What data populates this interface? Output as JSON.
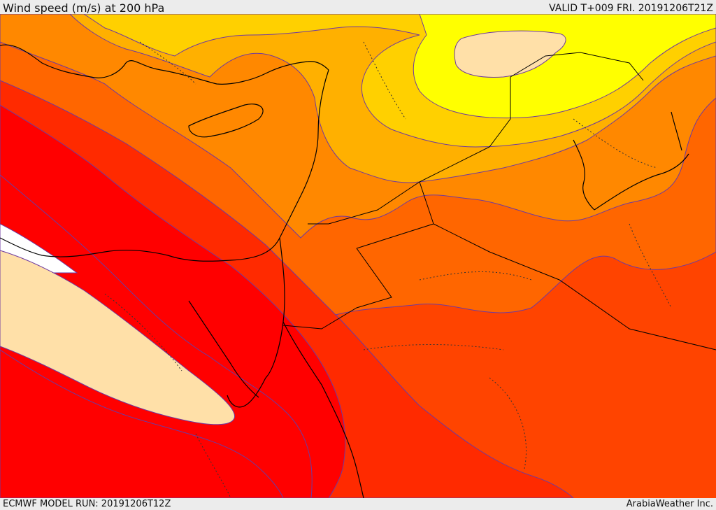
{
  "title": "Wind speed (m/s) at 200 hPa",
  "valid_label": "VALID T+009 FRI. 20191206T21Z",
  "model_run_label": "ECMWF MODEL RUN: 20191206T12Z",
  "credit_label": "ArabiaWeather Inc.",
  "colors": {
    "band_lightest": "#ffe0a8",
    "band_yellow": "#ffff00",
    "band_yellow_orange": "#ffd000",
    "band_amber": "#ffb000",
    "band_orange": "#ff8800",
    "band_dark_orange": "#ff6600",
    "band_red_orange": "#ff4400",
    "band_orange_red": "#ff2a00",
    "band_red": "#ff0000",
    "contour_line": "#6e3aa0",
    "coastline": "#000000",
    "background_missing": "#ffffff"
  }
}
